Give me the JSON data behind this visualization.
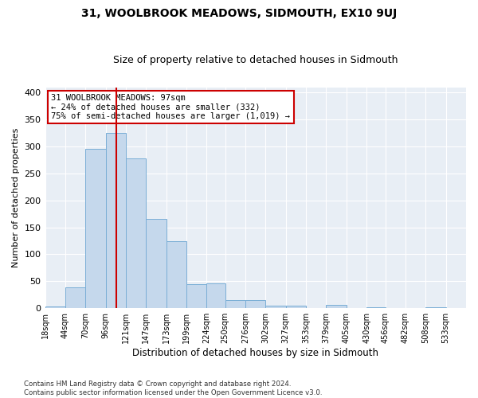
{
  "title": "31, WOOLBROOK MEADOWS, SIDMOUTH, EX10 9UJ",
  "subtitle": "Size of property relative to detached houses in Sidmouth",
  "xlabel": "Distribution of detached houses by size in Sidmouth",
  "ylabel": "Number of detached properties",
  "footer_line1": "Contains HM Land Registry data © Crown copyright and database right 2024.",
  "footer_line2": "Contains public sector information licensed under the Open Government Licence v3.0.",
  "bin_labels": [
    "18sqm",
    "44sqm",
    "70sqm",
    "96sqm",
    "121sqm",
    "147sqm",
    "173sqm",
    "199sqm",
    "224sqm",
    "250sqm",
    "276sqm",
    "302sqm",
    "327sqm",
    "353sqm",
    "379sqm",
    "405sqm",
    "430sqm",
    "456sqm",
    "482sqm",
    "508sqm",
    "533sqm"
  ],
  "bar_values": [
    3,
    38,
    295,
    325,
    278,
    165,
    124,
    44,
    46,
    15,
    15,
    5,
    5,
    0,
    6,
    0,
    2,
    0,
    0,
    2,
    0
  ],
  "bin_edges": [
    5,
    31,
    57,
    83,
    109,
    135,
    161,
    187,
    213,
    237,
    263,
    289,
    315,
    341,
    367,
    393,
    419,
    443,
    469,
    495,
    521,
    547
  ],
  "property_size": 97,
  "annotation_text_line1": "31 WOOLBROOK MEADOWS: 97sqm",
  "annotation_text_line2": "← 24% of detached houses are smaller (332)",
  "annotation_text_line3": "75% of semi-detached houses are larger (1,019) →",
  "bar_color": "#c5d8ec",
  "bar_edge_color": "#7aaed6",
  "vline_color": "#cc0000",
  "annotation_box_color": "#ffffff",
  "annotation_box_edge": "#cc0000",
  "background_color": "#e8eef5",
  "grid_color": "#ffffff",
  "ylim": [
    0,
    410
  ],
  "xlim": [
    5,
    547
  ]
}
